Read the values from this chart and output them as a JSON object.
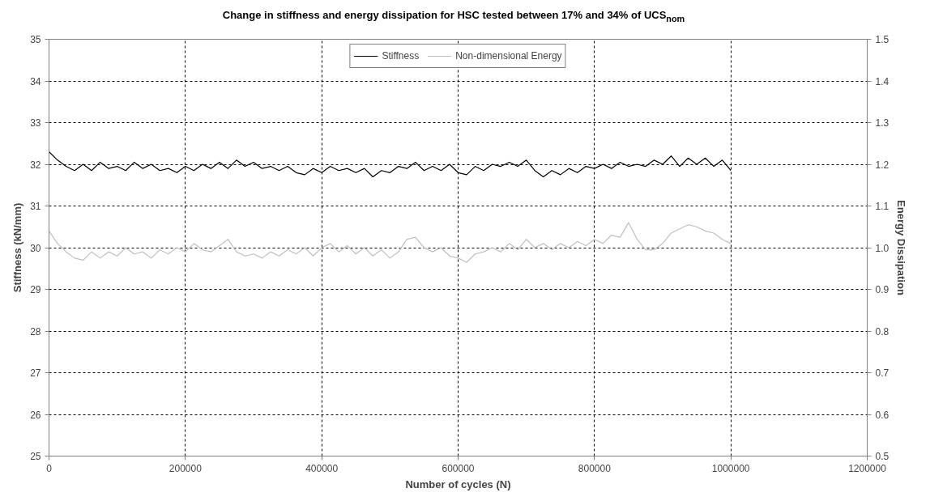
{
  "chart_data": {
    "type": "line",
    "title": "Change in stiffness and energy dissipation for HSC tested between 17% and 34% of UCS$_{nom}$",
    "xlabel": "Number of cycles (N)",
    "ylabel": "Stiffness (kN/mm)",
    "y2label": "Energy Dissipation",
    "x": [
      0,
      12500,
      25000,
      37500,
      50000,
      62500,
      75000,
      87500,
      100000,
      112500,
      125000,
      137500,
      150000,
      162500,
      175000,
      187500,
      200000,
      212500,
      225000,
      237500,
      250000,
      262500,
      275000,
      287500,
      300000,
      312500,
      325000,
      337500,
      350000,
      362500,
      375000,
      387500,
      400000,
      412500,
      425000,
      437500,
      450000,
      462500,
      475000,
      487500,
      500000,
      512500,
      525000,
      537500,
      550000,
      562500,
      575000,
      587500,
      600000,
      612500,
      625000,
      637500,
      650000,
      662500,
      675000,
      687500,
      700000,
      712500,
      725000,
      737500,
      750000,
      762500,
      775000,
      787500,
      800000,
      812500,
      825000,
      837500,
      850000,
      862500,
      875000,
      887500,
      900000,
      912500,
      925000,
      937500,
      950000,
      962500,
      975000,
      987500,
      1000000
    ],
    "series": [
      {
        "name": "Stiffness",
        "color": "#000000",
        "values": [
          32.3,
          32.1,
          31.95,
          31.85,
          32.0,
          31.85,
          32.05,
          31.9,
          31.95,
          31.85,
          32.05,
          31.9,
          32.0,
          31.85,
          31.9,
          31.8,
          31.95,
          31.85,
          32.0,
          31.9,
          32.05,
          31.9,
          32.1,
          31.95,
          32.05,
          31.9,
          31.95,
          31.85,
          31.95,
          31.8,
          31.75,
          31.9,
          31.8,
          31.95,
          31.85,
          31.9,
          31.8,
          31.9,
          31.7,
          31.85,
          31.8,
          31.95,
          31.9,
          32.05,
          31.85,
          31.95,
          31.85,
          32.0,
          31.8,
          31.75,
          31.95,
          31.85,
          32.0,
          31.95,
          32.05,
          31.95,
          32.1,
          31.85,
          31.7,
          31.85,
          31.75,
          31.9,
          31.8,
          31.95,
          31.9,
          32.0,
          31.9,
          32.05,
          31.95,
          32.0,
          31.95,
          32.1,
          32.0,
          32.2,
          31.95,
          32.15,
          32.0,
          32.15,
          31.95,
          32.1,
          31.85
        ]
      },
      {
        "name": "Non-dimensional Energy",
        "color": "#c0c0c0",
        "axis": "y2",
        "values": [
          1.04,
          1.01,
          0.99,
          0.975,
          0.97,
          0.99,
          0.975,
          0.99,
          0.98,
          1.0,
          0.985,
          0.99,
          0.975,
          0.995,
          0.985,
          1.0,
          0.99,
          1.01,
          0.995,
          0.99,
          1.005,
          1.02,
          0.99,
          0.98,
          0.985,
          0.975,
          0.99,
          0.98,
          0.995,
          0.985,
          1.0,
          0.98,
          1.0,
          1.01,
          0.99,
          1.005,
          0.985,
          1.0,
          0.98,
          0.995,
          0.975,
          0.99,
          1.02,
          1.025,
          1.0,
          0.99,
          1.0,
          0.98,
          0.975,
          0.965,
          0.985,
          0.99,
          1.0,
          0.99,
          1.01,
          0.995,
          1.02,
          1.0,
          1.01,
          0.995,
          1.01,
          1.0,
          1.015,
          1.005,
          1.02,
          1.01,
          1.03,
          1.025,
          1.06,
          1.02,
          0.995,
          0.995,
          1.01,
          1.035,
          1.045,
          1.055,
          1.05,
          1.04,
          1.035,
          1.02,
          1.01
        ]
      }
    ],
    "xlim": [
      0,
      1200000
    ],
    "xticks": [
      0,
      200000,
      400000,
      600000,
      800000,
      1000000,
      1200000
    ],
    "ylim": [
      25,
      35
    ],
    "yticks": [
      25,
      26,
      27,
      28,
      29,
      30,
      31,
      32,
      33,
      34,
      35
    ],
    "y2lim": [
      0.5,
      1.5
    ],
    "y2ticks": [
      {
        "value": 0.5,
        "label": "0.5"
      },
      {
        "value": 0.6,
        "label": "0.6"
      },
      {
        "value": 0.7,
        "label": "0.7"
      },
      {
        "value": 0.8,
        "label": "0.8"
      },
      {
        "value": 0.9,
        "label": "0.9"
      },
      {
        "value": 1.0,
        "label": "1.0"
      },
      {
        "value": 1.1,
        "label": "1.1"
      },
      {
        "value": 1.2,
        "label": "1.2"
      },
      {
        "value": 1.3,
        "label": "1.3"
      },
      {
        "value": 1.4,
        "label": "1.4"
      },
      {
        "value": 1.5,
        "label": "1.5"
      }
    ],
    "grid": true,
    "legend": "top",
    "marker": "none",
    "line_style": "solid"
  }
}
